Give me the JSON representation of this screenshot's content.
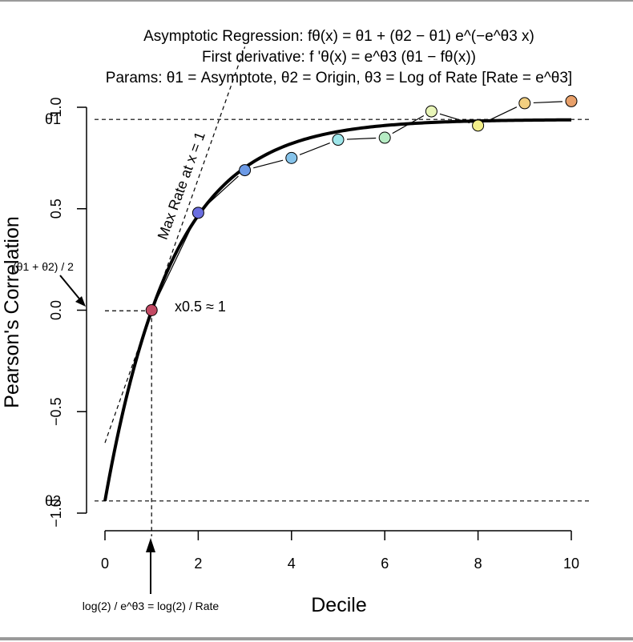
{
  "title_lines": [
    "Asymptotic Regression: fθ(x) = θ1 + (θ2 − θ1) e^(−e^θ3 x)",
    "First derivative: f 'θ(x) = e^θ3 (θ1 − fθ(x))",
    "Params: θ1 = Asymptote, θ2 = Origin, θ3 = Log of Rate [Rate = e^θ3]"
  ],
  "annotations": {
    "max_rate_label": "Max Rate at x = 1",
    "x_half_label": "x0.5 ≈ 1",
    "midpoint_label": "(θ1 + θ2) / 2",
    "bottom_formula": "log(2) / e^θ3 = log(2) / Rate",
    "theta1_tick": "θ1",
    "theta2_tick": "θ2"
  },
  "chart_data": {
    "type": "scatter",
    "title": "Asymptotic Regression",
    "xlabel": "Decile",
    "ylabel": "Pearson's Correlation",
    "xlim": [
      0,
      10
    ],
    "ylim": [
      -1.0,
      1.0
    ],
    "x_ticks": [
      0,
      2,
      4,
      6,
      8,
      10
    ],
    "y_ticks": [
      -1.0,
      -0.5,
      0.0,
      0.5,
      1.0
    ],
    "y_tick_labels": [
      "−1.0",
      "−0.5",
      "0.0",
      "0.5",
      "1.0"
    ],
    "grid": false,
    "params": {
      "theta1": 0.94,
      "theta2": -0.94,
      "rate": 0.69
    },
    "x_half": 1,
    "series": [
      {
        "points_x": [
          1,
          2,
          3,
          4,
          5,
          6,
          7,
          8,
          9,
          10
        ],
        "points_y": [
          0.0,
          0.48,
          0.69,
          0.75,
          0.84,
          0.85,
          0.98,
          0.91,
          1.02,
          1.03
        ],
        "point_colors": [
          "#c34a64",
          "#6a6ee0",
          "#6c9ae6",
          "#86c3ea",
          "#9ee6ea",
          "#b6ecc4",
          "#e8f5b8",
          "#f3ef8a",
          "#f2cf80",
          "#e8a06a"
        ]
      }
    ]
  }
}
